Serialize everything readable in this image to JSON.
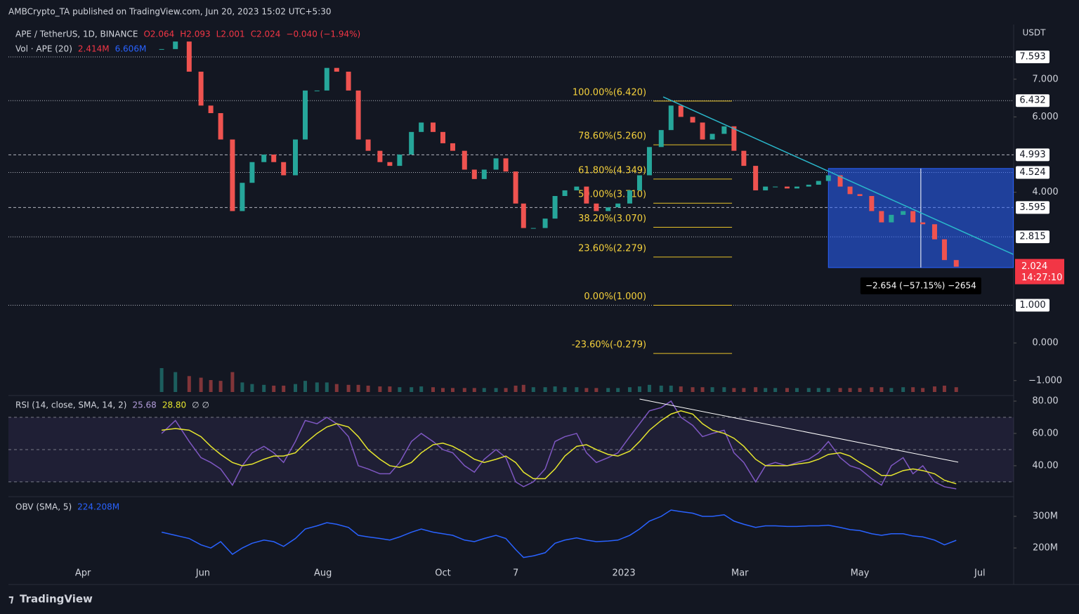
{
  "header": {
    "publisher": "AMBCrypto_TA published on TradingView.com, Jun 20, 2023 15:02 UTC+5:30",
    "footer": "TradingView"
  },
  "chart_data": [
    {
      "type": "candlestick",
      "title": "APE / TetherUS, 1D, BINANCE",
      "currency": "USDT",
      "ohlc": [
        "O2.064",
        "H2.093",
        "L2.001",
        "C2.024"
      ],
      "change": "−0.040 (−1.94%)",
      "x": [
        40,
        47,
        54,
        60,
        65,
        70,
        76,
        81,
        86,
        92,
        97,
        102,
        108,
        113,
        119,
        124,
        129,
        135,
        140,
        145,
        151,
        156,
        161,
        167,
        172,
        178,
        183,
        188,
        194,
        199,
        204,
        210,
        215,
        220,
        224,
        229,
        235,
        240,
        245,
        251,
        256,
        261,
        267,
        272,
        278,
        283,
        288,
        294,
        299,
        304,
        310,
        315,
        320,
        326,
        331,
        336,
        342,
        347,
        352,
        358,
        363,
        369,
        374,
        379,
        385,
        390,
        395,
        401,
        406,
        411,
        417,
        422,
        427,
        433,
        438,
        444
      ],
      "series": [
        {
          "name": "APE / TetherUS",
          "up_color": "#26a69a",
          "down_color": "#ef5350",
          "values": [
            7.8,
            8.0,
            7.2,
            6.3,
            6.1,
            5.4,
            3.5,
            4.25,
            4.8,
            5.0,
            4.8,
            4.45,
            5.4,
            6.7,
            6.7,
            7.3,
            7.2,
            6.7,
            5.4,
            5.1,
            4.8,
            4.7,
            5.0,
            5.6,
            5.85,
            5.6,
            5.3,
            5.1,
            4.6,
            4.35,
            4.6,
            4.9,
            4.55,
            3.7,
            3.05,
            3.05,
            3.3,
            3.9,
            4.05,
            4.15,
            3.7,
            3.5,
            3.6,
            3.7,
            4.05,
            4.45,
            5.2,
            5.65,
            6.3,
            6.0,
            5.85,
            5.4,
            5.55,
            5.75,
            5.1,
            4.7,
            4.05,
            4.15,
            4.15,
            4.1,
            4.15,
            4.2,
            4.3,
            4.45,
            4.15,
            3.95,
            3.9,
            3.5,
            3.2,
            3.4,
            3.5,
            3.2,
            3.15,
            2.75,
            2.2,
            2.024
          ]
        }
      ],
      "volume": {
        "title": "Vol · APE (20)",
        "labels": [
          "2.414M",
          "6.606M"
        ],
        "ylim": [
          0,
          60
        ],
        "values": [
          30,
          25,
          20,
          18,
          15,
          14,
          25,
          12,
          10,
          9,
          8,
          8,
          10,
          14,
          12,
          12,
          10,
          9,
          9,
          8,
          7,
          7,
          6,
          6,
          7,
          6,
          5,
          5,
          5,
          5,
          5,
          5,
          5,
          8,
          9,
          6,
          6,
          7,
          6,
          6,
          5,
          5,
          5,
          5,
          6,
          7,
          9,
          8,
          8,
          7,
          6,
          6,
          6,
          6,
          5,
          5,
          6,
          5,
          5,
          5,
          5,
          5,
          5,
          5,
          5,
          5,
          5,
          6,
          6,
          5,
          6,
          6,
          5,
          7,
          8,
          6
        ]
      },
      "xlim": [
        -37.9,
        473.2
      ],
      "ylim": [
        -1.34,
        8.45
      ],
      "xticks": [
        {
          "value": 0,
          "label": "Apr"
        },
        {
          "value": 61,
          "label": "Jun"
        },
        {
          "value": 122,
          "label": "Aug"
        },
        {
          "value": 183,
          "label": "Oct"
        },
        {
          "value": 220,
          "label": "7"
        },
        {
          "value": 275,
          "label": "2023"
        },
        {
          "value": 334,
          "label": "Mar"
        },
        {
          "value": 395,
          "label": "May"
        },
        {
          "value": 456,
          "label": "Jul"
        }
      ],
      "yticks": [
        {
          "value": 7,
          "label": "7.000"
        },
        {
          "value": 6,
          "label": "6.000"
        },
        {
          "value": 4,
          "label": "4.000"
        },
        {
          "value": 0,
          "label": "0.000"
        },
        {
          "value": -1,
          "label": "−1.000"
        }
      ],
      "levels": [
        7.593,
        6.432,
        4.993,
        4.524,
        3.595,
        2.815,
        {
          "value": 1,
          "label": "1.000"
        }
      ],
      "last": {
        "value": 2.024,
        "timer": "14:27:10"
      },
      "fib": [
        {
          "value": 6.42,
          "label": "100.00%(6.420)"
        },
        {
          "value": 5.26,
          "label": "78.60%(5.260)"
        },
        {
          "value": 4.349,
          "label": "61.80%(4.349)"
        },
        {
          "value": 3.71,
          "label": "50.00%(3.710)"
        },
        {
          "value": 3.07,
          "label": "38.20%(3.070)"
        },
        {
          "value": 2.279,
          "label": "23.60%(2.279)"
        },
        {
          "value": 1,
          "label": "0.00%(1.000)"
        },
        {
          "value": -0.279,
          "label": "-23.60%(-0.279)"
        }
      ],
      "fib_x": [
        290,
        330
      ],
      "trendline": {
        "x": [
          295,
          473
        ],
        "values": [
          6.53,
          2.35
        ]
      },
      "measure": {
        "label": "−2.654 (−57.15%) −2654",
        "x": [
          379,
          473
        ],
        "range": [
          4.63,
          2.0
        ]
      }
    },
    {
      "type": "line",
      "title": "RSI (14, close, SMA, 14, 2)",
      "extra": "∅ ∅",
      "ylim": [
        21.7,
        82.6
      ],
      "yticks": [
        {
          "value": 80,
          "label": "80.00"
        },
        {
          "value": 60,
          "label": "60.00"
        },
        {
          "value": 40,
          "label": "40.00"
        }
      ],
      "band": [
        30,
        50,
        70
      ],
      "series": [
        {
          "name": "25.68",
          "color": "#7e57c2",
          "values": [
            60,
            68,
            55,
            45,
            42,
            38,
            28,
            40,
            48,
            52,
            48,
            42,
            55,
            68,
            66,
            70,
            66,
            58,
            40,
            38,
            35,
            35,
            42,
            55,
            60,
            55,
            50,
            48,
            40,
            36,
            44,
            50,
            45,
            30,
            27,
            30,
            38,
            55,
            58,
            60,
            48,
            42,
            45,
            48,
            58,
            66,
            74,
            76,
            80,
            70,
            65,
            58,
            60,
            62,
            48,
            42,
            30,
            40,
            42,
            40,
            42,
            44,
            48,
            55,
            45,
            40,
            38,
            32,
            28,
            40,
            45,
            35,
            40,
            30,
            27,
            25.68
          ]
        },
        {
          "name": "28.80",
          "color": "#e6e62e",
          "values": [
            62,
            63,
            62,
            58,
            52,
            47,
            42,
            40,
            41,
            44,
            46,
            46,
            48,
            54,
            60,
            64,
            66,
            64,
            58,
            50,
            44,
            40,
            39,
            42,
            48,
            53,
            54,
            52,
            48,
            44,
            42,
            44,
            46,
            42,
            36,
            32,
            32,
            38,
            46,
            52,
            53,
            50,
            47,
            46,
            49,
            55,
            62,
            68,
            72,
            74,
            72,
            66,
            62,
            60,
            57,
            52,
            44,
            40,
            40,
            40,
            41,
            42,
            44,
            47,
            48,
            46,
            42,
            38,
            34,
            34,
            37,
            38,
            37,
            35,
            31,
            28.8
          ]
        }
      ],
      "trendline": {
        "x": [
          283,
          445
        ],
        "values": [
          81.3,
          42.2
        ]
      }
    },
    {
      "type": "line",
      "title": "OBV (SMA, 5)",
      "ylim": [
        89,
        360
      ],
      "yticks": [
        {
          "value": 300,
          "label": "300M"
        },
        {
          "value": 200,
          "label": "200M"
        }
      ],
      "series": [
        {
          "name": "224.208M",
          "color": "#2962ff",
          "values": [
            250,
            240,
            230,
            210,
            200,
            220,
            180,
            200,
            215,
            225,
            220,
            205,
            230,
            260,
            270,
            280,
            275,
            265,
            240,
            235,
            230,
            225,
            235,
            250,
            260,
            250,
            245,
            240,
            225,
            220,
            230,
            240,
            230,
            195,
            170,
            175,
            185,
            215,
            225,
            232,
            225,
            220,
            222,
            225,
            240,
            260,
            285,
            300,
            320,
            315,
            310,
            300,
            300,
            305,
            285,
            275,
            265,
            270,
            270,
            268,
            268,
            270,
            270,
            272,
            265,
            258,
            255,
            245,
            240,
            245,
            245,
            238,
            235,
            225,
            210,
            224.208
          ]
        }
      ]
    }
  ]
}
